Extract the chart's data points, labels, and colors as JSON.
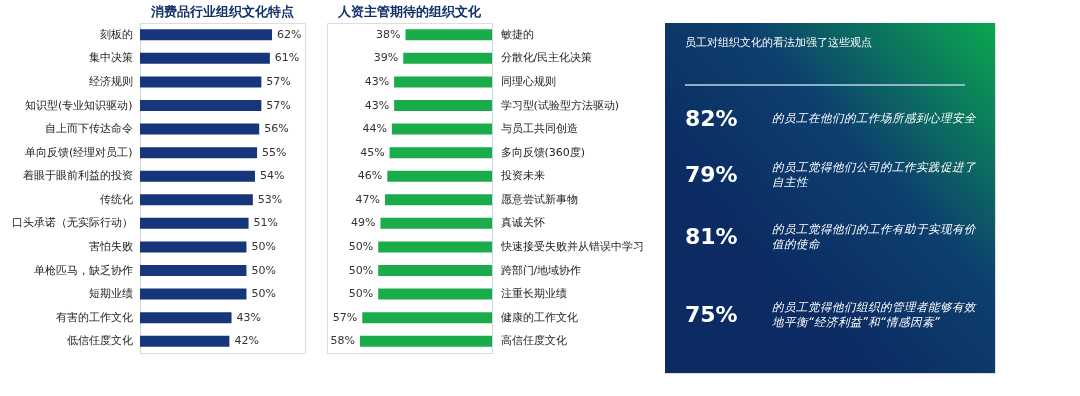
{
  "chart_data": [
    {
      "type": "bar",
      "orientation": "horizontal",
      "title": "消费品行业组织文化特点",
      "categories": [
        "刻板的",
        "集中决策",
        "经济规则",
        "知识型(专业知识驱动)",
        "自上而下传达命令",
        "单向反馈(经理对员工)",
        "着眼于眼前利益的投资",
        "传统化",
        "口头承诺（无实际行动）",
        "害怕失败",
        "单枪匹马，缺乏协作",
        "短期业绩",
        "有害的工作文化",
        "低信任度文化"
      ],
      "series": [
        {
          "color": "#17357a",
          "values": [
            62,
            61,
            57,
            57,
            56,
            55,
            54,
            53,
            51,
            50,
            50,
            50,
            43,
            42
          ],
          "value_labels": [
            "62%",
            "61%",
            "57%",
            "57%",
            "56%",
            "55%",
            "54%",
            "53%",
            "51%",
            "50%",
            "50%",
            "50%",
            "43%",
            "42%"
          ]
        }
      ]
    },
    {
      "type": "bar",
      "orientation": "horizontal",
      "title": "人资主管期待的组织文化",
      "categories": [
        "敏捷的",
        "分散化/民主化决策",
        "同理心规则",
        "学习型(试验型方法驱动)",
        "与员工共同创造",
        "多向反馈(360度)",
        "投资未来",
        "愿意尝试新事物",
        "真诚关怀",
        "快速接受失败并从错误中学习",
        "跨部门/地域协作",
        "注重长期业绩",
        "健康的工作文化",
        "高信任度文化"
      ],
      "series": [
        {
          "color": "#1aab4b",
          "values": [
            38,
            39,
            43,
            43,
            44,
            45,
            46,
            47,
            49,
            50,
            50,
            50,
            57,
            58
          ],
          "value_labels": [
            "38%",
            "39%",
            "43%",
            "43%",
            "44%",
            "45%",
            "46%",
            "47%",
            "49%",
            "50%",
            "50%",
            "50%",
            "57%",
            "58%"
          ]
        }
      ]
    },
    {
      "type": "other",
      "title": "员工对组织文化的看法加强了这些观点",
      "annotations": [
        "82%",
        "的员工在他们的工作场所感到心理安全",
        "79%",
        "的员工觉得他们公司的工作实践促进了自主性",
        "81%",
        "的员工觉得他们的工作有助于实现有价值的使命",
        "75%",
        "的员工觉得他们组织的管理者能够有效地平衡“经济利益”和“情感因素”"
      ]
    }
  ]
}
